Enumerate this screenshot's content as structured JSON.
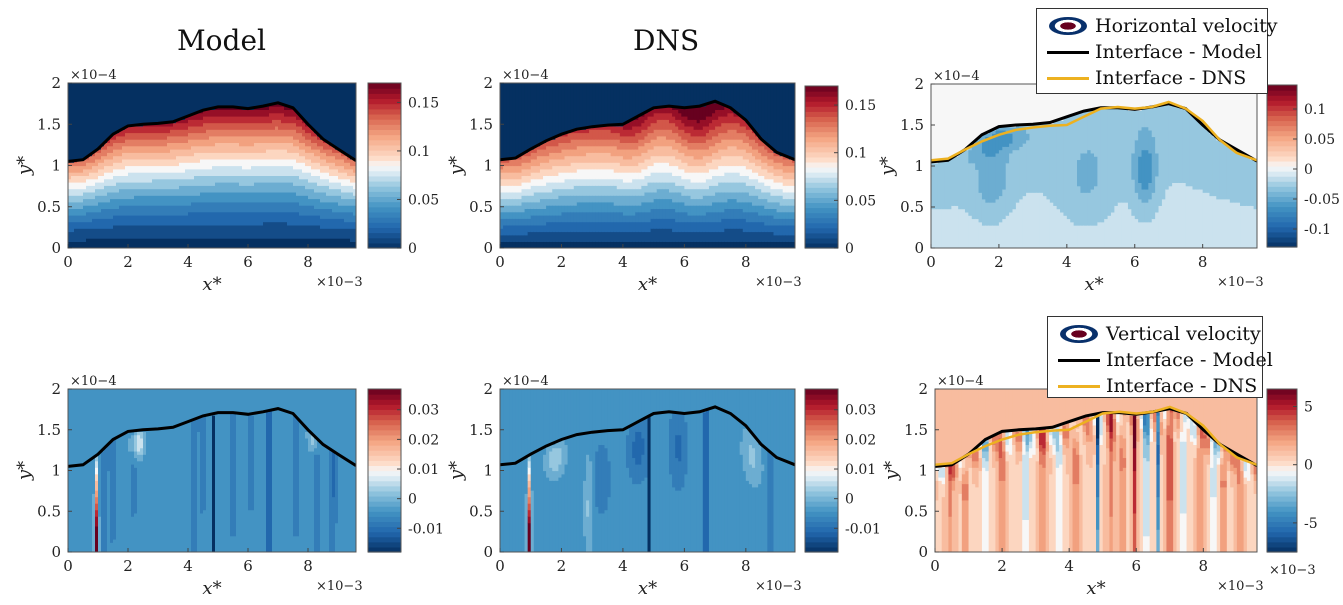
{
  "column_titles": {
    "model": "Model",
    "dns": "DNS"
  },
  "legends": {
    "horizontal": {
      "contour_label": "Horizontal velocity",
      "model_line_label": "Interface - Model",
      "dns_line_label": "Interface - DNS",
      "contour_icon": "filled-ellipse-icon",
      "model_color": "#000000",
      "dns_color": "#EDB120"
    },
    "vertical": {
      "contour_label": "Vertical velocity",
      "model_line_label": "Interface - Model",
      "dns_line_label": "Interface - DNS",
      "contour_icon": "filled-ellipse-icon",
      "model_color": "#000000",
      "dns_color": "#EDB120"
    }
  },
  "chart_data": [
    {
      "id": "model_u",
      "type": "heatmap",
      "row": 0,
      "col": 0,
      "title": "",
      "xlabel": "x*",
      "ylabel": "y*",
      "xlim": [
        0,
        9.6
      ],
      "ylim": [
        0,
        2
      ],
      "xticks": [
        0,
        2,
        4,
        6,
        8
      ],
      "yticks": [
        0,
        0.5,
        1,
        1.5,
        2
      ],
      "xtick_labels": [
        "0",
        "2",
        "4",
        "6",
        "8"
      ],
      "ytick_labels": [
        "0",
        "0.5",
        "1",
        "1.5",
        "2"
      ],
      "x_exponent": "×10-3",
      "y_exponent": "×10-4",
      "field": "horizontal velocity (Model)",
      "clim": [
        0,
        0.17
      ],
      "colorbar_ticks": [
        0,
        0.05,
        0.1,
        0.15
      ],
      "colorbar_tick_labels": [
        "0",
        "0.05",
        "0.1",
        "0.15"
      ],
      "above_interface": "min",
      "interface": [
        "model"
      ]
    },
    {
      "id": "dns_u",
      "type": "heatmap",
      "row": 0,
      "col": 1,
      "title": "",
      "xlabel": "x*",
      "ylabel": "y*",
      "xlim": [
        0,
        9.6
      ],
      "ylim": [
        0,
        2
      ],
      "xticks": [
        0,
        2,
        4,
        6,
        8
      ],
      "yticks": [
        0,
        0.5,
        1,
        1.5,
        2
      ],
      "xtick_labels": [
        "0",
        "2",
        "4",
        "6",
        "8"
      ],
      "ytick_labels": [
        "0",
        "0.5",
        "1",
        "1.5",
        "2"
      ],
      "x_exponent": "×10-3",
      "y_exponent": "×10-4",
      "field": "horizontal velocity (DNS)",
      "clim": [
        0,
        0.17
      ],
      "colorbar_ticks": [
        0,
        0.05,
        0.1,
        0.15
      ],
      "colorbar_tick_labels": [
        "0",
        "0.05",
        "0.1",
        "0.15"
      ],
      "above_interface": "min",
      "interface": [
        "dns"
      ]
    },
    {
      "id": "diff_u",
      "type": "heatmap",
      "row": 0,
      "col": 2,
      "title": "",
      "xlabel": "x*",
      "ylabel": "y*",
      "xlim": [
        0,
        9.6
      ],
      "ylim": [
        0,
        2
      ],
      "xticks": [
        0,
        2,
        4,
        6,
        8
      ],
      "yticks": [
        0,
        0.5,
        1,
        1.5,
        2
      ],
      "xtick_labels": [
        "0",
        "2",
        "4",
        "6",
        "8"
      ],
      "ytick_labels": [
        "0",
        "0.5",
        "1",
        "1.5",
        "2"
      ],
      "x_exponent": "×10-3",
      "y_exponent": "×10-4",
      "field": "horizontal velocity difference",
      "clim": [
        -0.13,
        0.14
      ],
      "colorbar_ticks": [
        -0.1,
        -0.05,
        0,
        0.05,
        0.1
      ],
      "colorbar_tick_labels": [
        "-0.1",
        "-0.05",
        "0",
        "0.05",
        "0.1"
      ],
      "above_interface": "zero",
      "interface": [
        "model",
        "dns"
      ]
    },
    {
      "id": "model_v",
      "type": "heatmap",
      "row": 1,
      "col": 0,
      "title": "",
      "xlabel": "x*",
      "ylabel": "y*",
      "xlim": [
        0,
        9.6
      ],
      "ylim": [
        0,
        2
      ],
      "xticks": [
        0,
        2,
        4,
        6,
        8
      ],
      "yticks": [
        0,
        0.5,
        1,
        1.5,
        2
      ],
      "xtick_labels": [
        "0",
        "2",
        "4",
        "6",
        "8"
      ],
      "ytick_labels": [
        "0",
        "0.5",
        "1",
        "1.5",
        "2"
      ],
      "x_exponent": "×10-3",
      "y_exponent": "×10-4",
      "field": "vertical velocity (Model)",
      "clim": [
        -0.018,
        0.037
      ],
      "colorbar_ticks": [
        -0.01,
        0,
        0.01,
        0.02,
        0.03
      ],
      "colorbar_tick_labels": [
        "-0.01",
        "0",
        "0.01",
        "0.02",
        "0.03"
      ],
      "above_interface": "fill",
      "interface": [
        "model"
      ],
      "background_value": -0.004
    },
    {
      "id": "dns_v",
      "type": "heatmap",
      "row": 1,
      "col": 1,
      "title": "",
      "xlabel": "x*",
      "ylabel": "y*",
      "xlim": [
        0,
        9.6
      ],
      "ylim": [
        0,
        2
      ],
      "xticks": [
        0,
        2,
        4,
        6,
        8
      ],
      "yticks": [
        0,
        0.5,
        1,
        1.5,
        2
      ],
      "xtick_labels": [
        "0",
        "2",
        "4",
        "6",
        "8"
      ],
      "ytick_labels": [
        "0",
        "0.5",
        "1",
        "1.5",
        "2"
      ],
      "x_exponent": "×10-3",
      "y_exponent": "×10-4",
      "field": "vertical velocity (DNS)",
      "clim": [
        -0.018,
        0.037
      ],
      "colorbar_ticks": [
        -0.01,
        0,
        0.01,
        0.02,
        0.03
      ],
      "colorbar_tick_labels": [
        "-0.01",
        "0",
        "0.01",
        "0.02",
        "0.03"
      ],
      "above_interface": "fill",
      "interface": [
        "dns"
      ],
      "background_value": -0.004
    },
    {
      "id": "diff_v",
      "type": "heatmap",
      "row": 1,
      "col": 2,
      "title": "",
      "xlabel": "x*",
      "ylabel": "y*",
      "xlim": [
        0,
        9.6
      ],
      "ylim": [
        0,
        2
      ],
      "xticks": [
        0,
        2,
        4,
        6,
        8
      ],
      "yticks": [
        0,
        0.5,
        1,
        1.5,
        2
      ],
      "xtick_labels": [
        "0",
        "2",
        "4",
        "6",
        "8"
      ],
      "ytick_labels": [
        "0",
        "0.5",
        "1",
        "1.5",
        "2"
      ],
      "x_exponent": "×10-3",
      "y_exponent": "×10-4",
      "field": "vertical velocity difference",
      "clim": [
        -7.5,
        6.5
      ],
      "colorbar_ticks": [
        -5,
        0,
        5
      ],
      "colorbar_tick_labels": [
        "-5",
        "0",
        "5"
      ],
      "colorbar_exponent": "×10-3",
      "above_interface": "fill",
      "interface": [
        "model",
        "dns"
      ],
      "background_value": 0.9
    }
  ],
  "interface_curves": {
    "x": [
      0,
      0.5,
      1.0,
      1.5,
      2.0,
      2.5,
      3.0,
      3.5,
      4.0,
      4.5,
      5.0,
      5.5,
      6.0,
      6.5,
      7.0,
      7.5,
      8.0,
      8.5,
      9.0,
      9.6
    ],
    "model": [
      1.05,
      1.07,
      1.2,
      1.38,
      1.48,
      1.5,
      1.51,
      1.53,
      1.6,
      1.67,
      1.71,
      1.71,
      1.69,
      1.72,
      1.76,
      1.7,
      1.5,
      1.32,
      1.2,
      1.06
    ],
    "dns": [
      1.07,
      1.09,
      1.2,
      1.3,
      1.38,
      1.44,
      1.47,
      1.49,
      1.5,
      1.6,
      1.7,
      1.72,
      1.7,
      1.72,
      1.78,
      1.7,
      1.55,
      1.32,
      1.16,
      1.07
    ]
  }
}
